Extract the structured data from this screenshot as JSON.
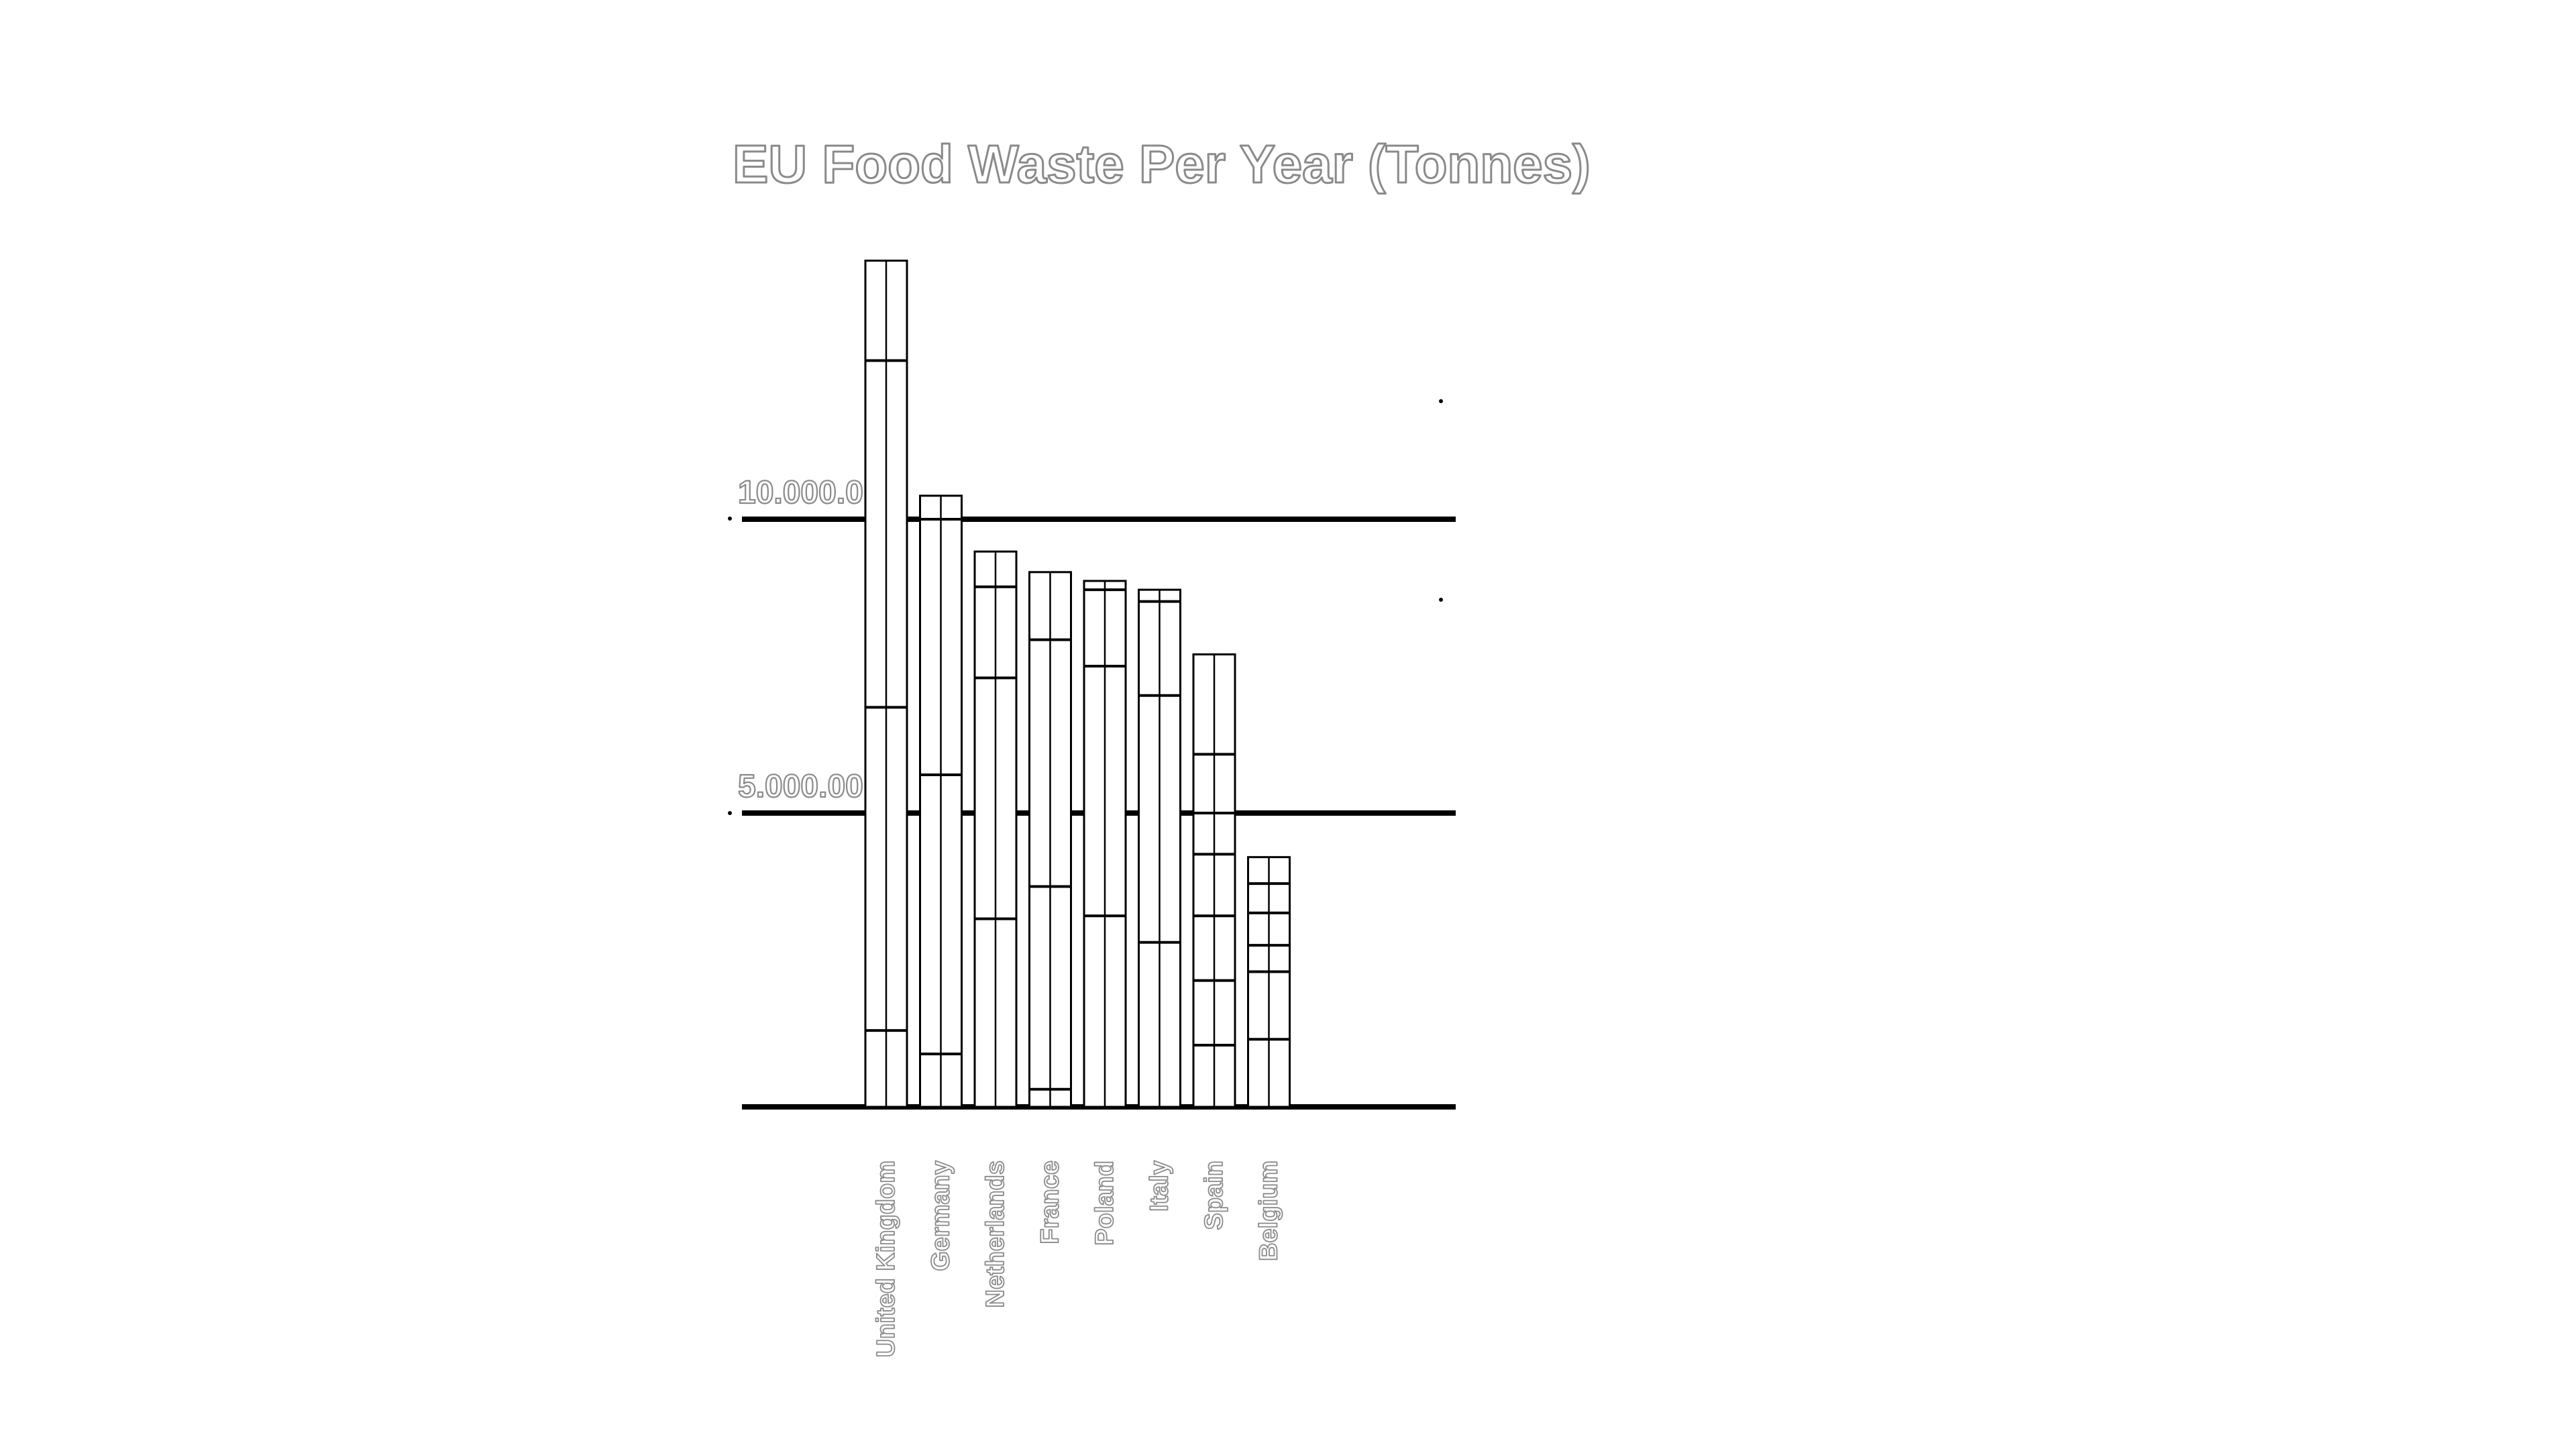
{
  "chart_data": {
    "type": "bar",
    "stacked": true,
    "title": "EU Food Waste Per Year (Tonnes)",
    "xlabel": "",
    "ylabel": "",
    "y_ticks": [
      {
        "value": 5000,
        "label": "5.000.00"
      },
      {
        "value": 10000,
        "label": "10.000.0"
      }
    ],
    "ylim": [
      0,
      14400
    ],
    "grid": true,
    "legend": "none",
    "categories": [
      "United Kingdom",
      "Germany",
      "Netherlands",
      "France",
      "Poland",
      "Italy",
      "Spain",
      "Belgium"
    ],
    "totals": [
      14400,
      10400,
      9450,
      9100,
      8950,
      8800,
      7700,
      4250
    ],
    "segment_boundaries": [
      [
        1300,
        6800,
        12700,
        14400
      ],
      [
        900,
        5650,
        10000,
        10400
      ],
      [
        3200,
        7300,
        8850,
        9450
      ],
      [
        300,
        3750,
        7950,
        9100
      ],
      [
        3250,
        7500,
        8800,
        8950
      ],
      [
        2800,
        7000,
        8600,
        8800
      ],
      [
        1050,
        2150,
        3250,
        4300,
        5000,
        6000,
        7700
      ],
      [
        1150,
        2300,
        2750,
        3300,
        3800,
        4250
      ]
    ],
    "colors": {
      "bar_fill": "#ffffff",
      "bar_stroke": "#000000",
      "label_stroke": "#8a8a8a",
      "gridline": "#000000"
    }
  }
}
